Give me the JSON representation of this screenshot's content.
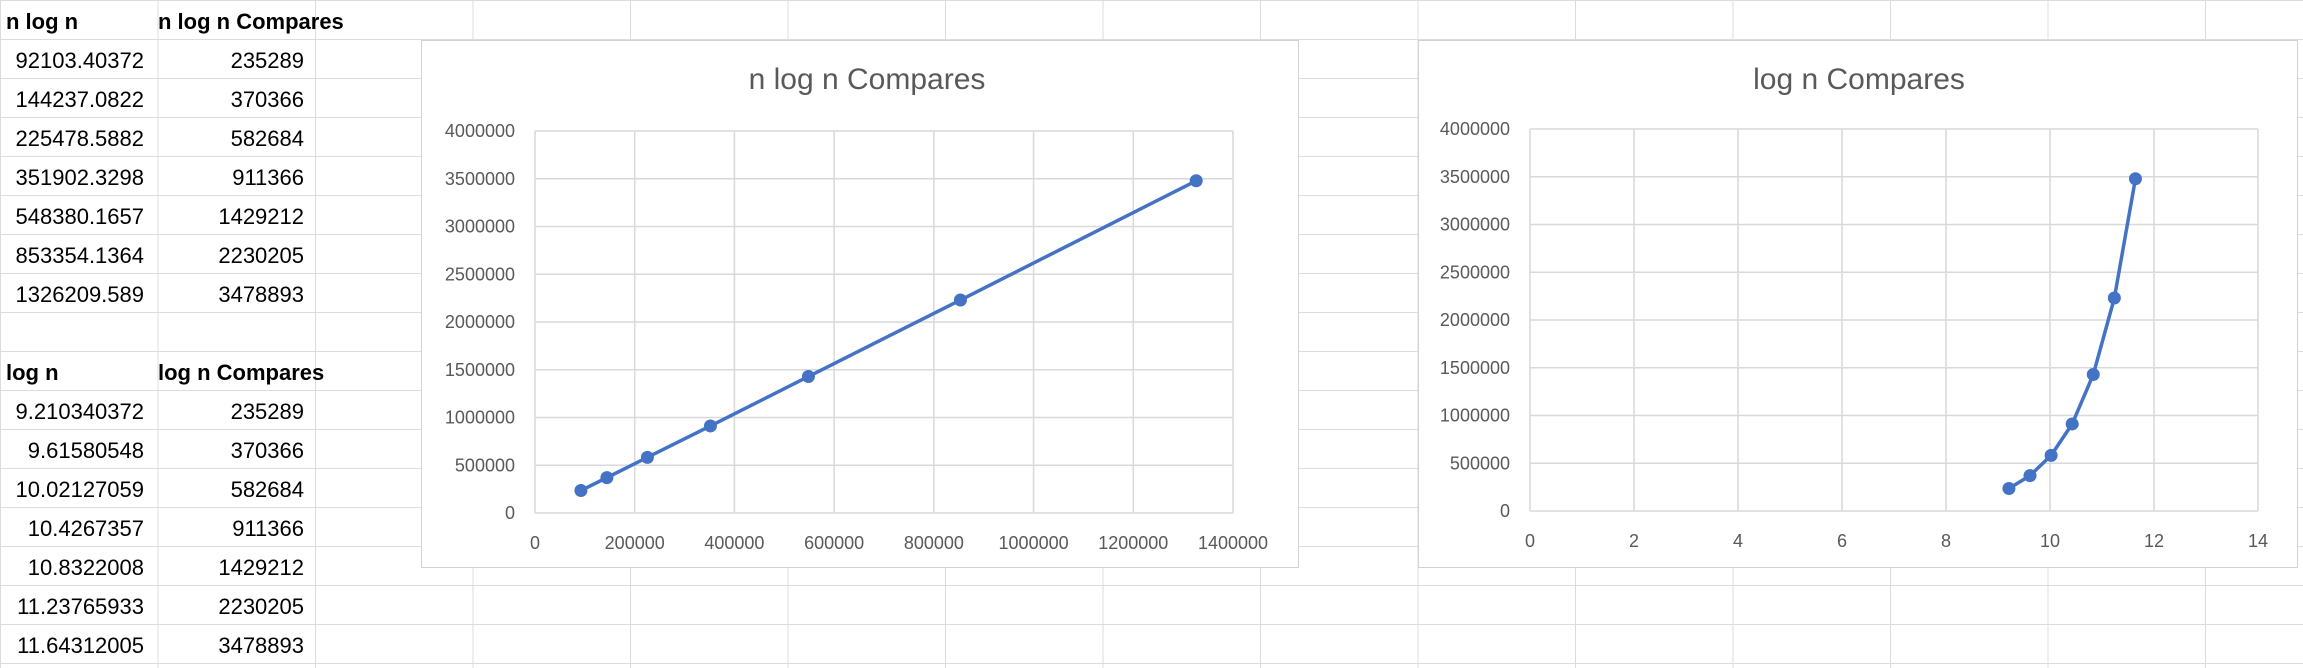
{
  "sheet": {
    "table1": {
      "headers": [
        "n log n",
        "n log n  Compares"
      ],
      "rows": [
        [
          "92103.40372",
          "235289"
        ],
        [
          "144237.0822",
          "370366"
        ],
        [
          "225478.5882",
          "582684"
        ],
        [
          "351902.3298",
          "911366"
        ],
        [
          "548380.1657",
          "1429212"
        ],
        [
          "853354.1364",
          "2230205"
        ],
        [
          "1326209.589",
          "3478893"
        ]
      ]
    },
    "table2": {
      "headers": [
        "log n",
        "log n  Compares"
      ],
      "rows": [
        [
          "9.210340372",
          "235289"
        ],
        [
          "9.61580548",
          "370366"
        ],
        [
          "10.02127059",
          "582684"
        ],
        [
          "10.4267357",
          "911366"
        ],
        [
          "10.8322008",
          "1429212"
        ],
        [
          "11.23765933",
          "2230205"
        ],
        [
          "11.64312005",
          "3478893"
        ]
      ]
    }
  },
  "series_color": "#4472C4",
  "chart_data": [
    {
      "type": "scatter",
      "title": "n log n  Compares",
      "xlabel": "",
      "ylabel": "",
      "x": [
        92103.40372,
        144237.0822,
        225478.5882,
        351902.3298,
        548380.1657,
        853354.1364,
        1326209.589
      ],
      "y": [
        235289,
        370366,
        582684,
        911366,
        1429212,
        2230205,
        3478893
      ],
      "xlim": [
        0,
        1400000
      ],
      "ylim": [
        0,
        4000000
      ],
      "xticks": [
        0,
        200000,
        400000,
        600000,
        800000,
        1000000,
        1200000,
        1400000
      ],
      "yticks": [
        0,
        500000,
        1000000,
        1500000,
        2000000,
        2500000,
        3000000,
        3500000,
        4000000
      ],
      "grid": true,
      "lines": true,
      "markers": true
    },
    {
      "type": "scatter",
      "title": "log n  Compares",
      "xlabel": "",
      "ylabel": "",
      "x": [
        9.210340372,
        9.61580548,
        10.02127059,
        10.4267357,
        10.8322008,
        11.23765933,
        11.64312005
      ],
      "y": [
        235289,
        370366,
        582684,
        911366,
        1429212,
        2230205,
        3478893
      ],
      "xlim": [
        0,
        14
      ],
      "ylim": [
        0,
        4000000
      ],
      "xticks": [
        0,
        2,
        4,
        6,
        8,
        10,
        12,
        14
      ],
      "yticks": [
        0,
        500000,
        1000000,
        1500000,
        2000000,
        2500000,
        3000000,
        3500000,
        4000000
      ],
      "grid": true,
      "lines": true,
      "markers": true
    }
  ]
}
